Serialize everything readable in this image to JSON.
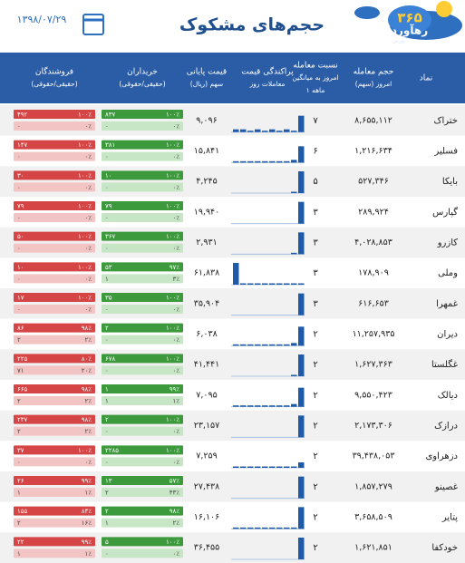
{
  "header": {
    "title": "حجم‌های مشکوک",
    "date": "۱۳۹۸/۰۷/۲۹",
    "logo": {
      "number": "۳۶۵",
      "name": "رهآورد",
      "tag": "بورس"
    }
  },
  "columns": [
    {
      "lines": [
        "نماد"
      ]
    },
    {
      "lines": [
        "حجم معامله",
        "امروز (سهم)"
      ]
    },
    {
      "lines": [
        "نسبت معامله",
        "امروز به میانگین",
        "۱ ماهه"
      ]
    },
    {
      "lines": [
        "پراکندگی قیمت",
        "معاملات روز"
      ]
    },
    {
      "lines": [
        "قیمت پایانی",
        "سهم (ریال)"
      ]
    },
    {
      "lines": [
        "خریداران",
        "(حقیقی/حقوقی)"
      ]
    },
    {
      "lines": [
        "فروشندگان",
        "(حقیقی/حقوقی)"
      ]
    }
  ],
  "rows": [
    {
      "symbol": "ختراک",
      "volume": "۸,۶۵۵,۱۱۲",
      "ratio": "۷",
      "price": "۹,۰۹۶",
      "hist": [
        1,
        1,
        0.5,
        1,
        0.5,
        1,
        0.5,
        1,
        0.5,
        6
      ],
      "buy": [
        "۸۳۷",
        "۱۰۰٪",
        "۰",
        "۰٪"
      ],
      "sell": [
        "۴۹۲",
        "۱۰۰٪",
        "۰",
        "۰٪"
      ]
    },
    {
      "symbol": "فسلیر",
      "volume": "۱,۲۱۶,۶۳۴",
      "ratio": "۶",
      "price": "۱۵,۸۴۱",
      "hist": [
        0.5,
        0.5,
        0.5,
        0.5,
        0.5,
        0.5,
        0.5,
        0.5,
        1,
        6
      ],
      "buy": [
        "۳۸۱",
        "۱۰۰٪",
        "۰",
        "۰٪"
      ],
      "sell": [
        "۱۴۷",
        "۱۰۰٪",
        "۰",
        "۰٪"
      ]
    },
    {
      "symbol": "بایکا",
      "volume": "۵۲۷,۳۴۶",
      "ratio": "۵",
      "price": "۴,۲۴۵",
      "hist": [
        0,
        0,
        0,
        0,
        0,
        0,
        0,
        0,
        0.5,
        8
      ],
      "buy": [
        "۱۰",
        "۱۰۰٪",
        "۰",
        "۰٪"
      ],
      "sell": [
        "۳۰",
        "۱۰۰٪",
        "۰",
        "۰٪"
      ]
    },
    {
      "symbol": "گپارس",
      "volume": "۲۸۹,۹۲۴",
      "ratio": "۳",
      "price": "۱۹,۹۴۰",
      "hist": [
        0,
        0,
        0,
        0,
        0,
        0,
        0,
        0,
        0,
        8
      ],
      "buy": [
        "۷۹",
        "۱۰۰٪",
        "۰",
        "۰٪"
      ],
      "sell": [
        "۷۹",
        "۱۰۰٪",
        "۰",
        "۰٪"
      ]
    },
    {
      "symbol": "کازرو",
      "volume": "۴,۰۲۸,۸۵۳",
      "ratio": "۳",
      "price": "۲,۹۳۱",
      "hist": [
        0,
        0,
        0,
        0,
        0,
        0,
        0,
        0,
        0.5,
        8
      ],
      "buy": [
        "۳۶۷",
        "۱۰۰٪",
        "۰",
        "۰٪"
      ],
      "sell": [
        "۵۰",
        "۱۰۰٪",
        "۰",
        "۰٪"
      ]
    },
    {
      "symbol": "وملی",
      "volume": "۱۷۸,۹۰۹",
      "ratio": "۳",
      "price": "۶۱,۸۳۸",
      "hist": [
        8,
        0.5,
        0.5,
        0.5,
        0.5,
        0.5,
        0.5,
        0.5,
        0.5,
        0.5
      ],
      "buy": [
        "۵۳",
        "۹۷٪",
        "۱",
        "۳٪"
      ],
      "sell": [
        "۱۰",
        "۱۰۰٪",
        "۰",
        "۰٪"
      ]
    },
    {
      "symbol": "غمهرا",
      "volume": "۶۱۶,۶۵۳",
      "ratio": "۳",
      "price": "۳۵,۹۰۴",
      "hist": [
        0,
        0,
        0,
        0,
        0,
        0,
        0,
        0,
        0,
        8
      ],
      "buy": [
        "۳۵",
        "۱۰۰٪",
        "۰",
        "۰٪"
      ],
      "sell": [
        "۱۷",
        "۱۰۰٪",
        "۰",
        "۰٪"
      ]
    },
    {
      "symbol": "دیران",
      "volume": "۱۱,۲۵۷,۹۳۵",
      "ratio": "۲",
      "price": "۶,۰۳۸",
      "hist": [
        0.5,
        0.5,
        0.5,
        0.5,
        0.5,
        0.5,
        0.5,
        0.5,
        1,
        7
      ],
      "buy": [
        "۲",
        "۱۰۰٪",
        "۰",
        "۰٪"
      ],
      "sell": [
        "۸۶",
        "۹۸٪",
        "۲",
        "۲٪"
      ]
    },
    {
      "symbol": "غگلستا",
      "volume": "۱,۶۲۷,۳۶۳",
      "ratio": "۲",
      "price": "۴۱,۴۴۱",
      "hist": [
        0,
        0,
        0,
        0,
        0,
        0,
        0,
        0,
        0.5,
        8
      ],
      "buy": [
        "۶۷۸",
        "۱۰۰٪",
        "۰",
        "۰٪"
      ],
      "sell": [
        "۲۲۵",
        "۸۰٪",
        "۷۱",
        "۲۰٪"
      ]
    },
    {
      "symbol": "دیالک",
      "volume": "۹,۵۵۰,۴۲۳",
      "ratio": "۲",
      "price": "۷,۰۹۵",
      "hist": [
        0.5,
        0.5,
        0.5,
        0.5,
        0.5,
        0.5,
        0.5,
        0.5,
        1,
        7
      ],
      "buy": [
        "۱",
        "۹۹٪",
        "۱",
        "۱٪"
      ],
      "sell": [
        "۶۶۵",
        "۹۸٪",
        "۲",
        "۲٪"
      ]
    },
    {
      "symbol": "درازک",
      "volume": "۲,۱۷۳,۳۰۶",
      "ratio": "۲",
      "price": "۲۳,۱۵۷",
      "hist": [
        0,
        0,
        0,
        0,
        0,
        0,
        0,
        0,
        0,
        8
      ],
      "buy": [
        "۲",
        "۱۰۰٪",
        "۰",
        "۰٪"
      ],
      "sell": [
        "۲۳۷",
        "۹۸٪",
        "۲",
        "۲٪"
      ]
    },
    {
      "symbol": "دزهراوی",
      "volume": "۳۹,۴۳۸,۰۵۳",
      "ratio": "۲",
      "price": "۷,۲۵۹",
      "hist": [
        0.5,
        0.5,
        0.5,
        0.5,
        0.5,
        0.5,
        0.5,
        0.5,
        0.5,
        2
      ],
      "buy": [
        "۲۲۸۵",
        "۱۰۰٪",
        "۰",
        "۰٪"
      ],
      "sell": [
        "۳۷",
        "۱۰۰٪",
        "۰",
        "۰٪"
      ]
    },
    {
      "symbol": "غصینو",
      "volume": "۱,۸۵۷,۲۷۹",
      "ratio": "۲",
      "price": "۲۷,۴۳۸",
      "hist": [
        0,
        0,
        0,
        0,
        0,
        0,
        0,
        0,
        0,
        8
      ],
      "buy": [
        "۱۳",
        "۵۷٪",
        "۲",
        "۴۳٪"
      ],
      "sell": [
        "۲۶",
        "۹۹٪",
        "۱",
        "۱٪"
      ]
    },
    {
      "symbol": "پتایر",
      "volume": "۳,۶۵۸,۵۰۹",
      "ratio": "۲",
      "price": "۱۶,۱۰۶",
      "hist": [
        0.5,
        0.5,
        0.5,
        0.5,
        0.5,
        0.5,
        0.5,
        0.5,
        0.5,
        8
      ],
      "buy": [
        "۲",
        "۹۸٪",
        "۱",
        "۲٪"
      ],
      "sell": [
        "۱۵۵",
        "۸۴٪",
        "۲",
        "۱۶٪"
      ]
    },
    {
      "symbol": "خودکفا",
      "volume": "۱,۶۲۱,۸۵۱",
      "ratio": "۲",
      "price": "۳۶,۴۵۵",
      "hist": [
        0,
        0,
        0,
        0,
        0,
        0,
        0,
        0,
        0,
        8
      ],
      "buy": [
        "۵",
        "۱۰۰٪",
        "۰",
        "۰٪"
      ],
      "sell": [
        "۲۲",
        "۹۹٪",
        "۱",
        "۱٪"
      ]
    }
  ]
}
